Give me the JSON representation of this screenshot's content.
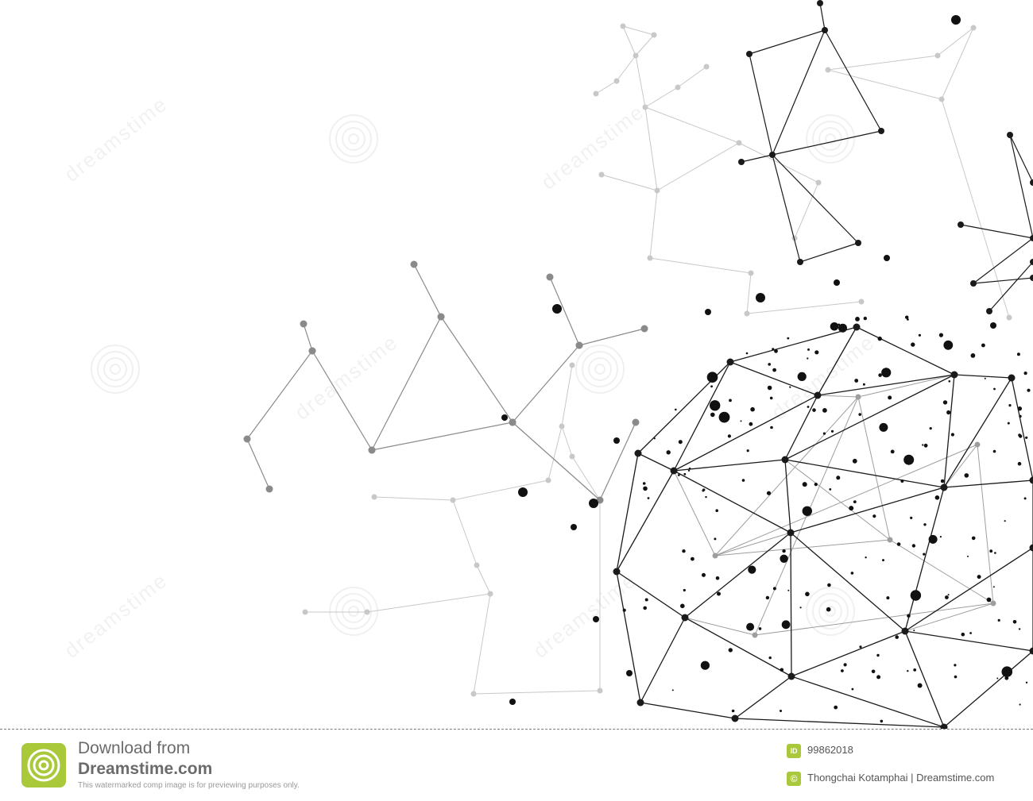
{
  "watermark": {
    "brand_line": "Download from",
    "brand_name": "Dreamstime.com",
    "notice": "This watermarked comp image is for previewing purposes only.",
    "image_id_label": "ID",
    "image_id": "99862018",
    "copyright_symbol": "©",
    "credit": "Thongchai Kotamphai | Dreamstime.com",
    "diagonal_text": "dreamstime",
    "accent_color": "#a9c93a"
  },
  "artwork": {
    "subject": "abstract network sphere",
    "line_color_dark": "#1a1a1a",
    "line_color_mid": "#8a8a8a",
    "line_color_light": "#c8c8c8"
  },
  "icons": {
    "logo": "dreamstime-spiral-icon",
    "scissors": "scissors-icon"
  }
}
